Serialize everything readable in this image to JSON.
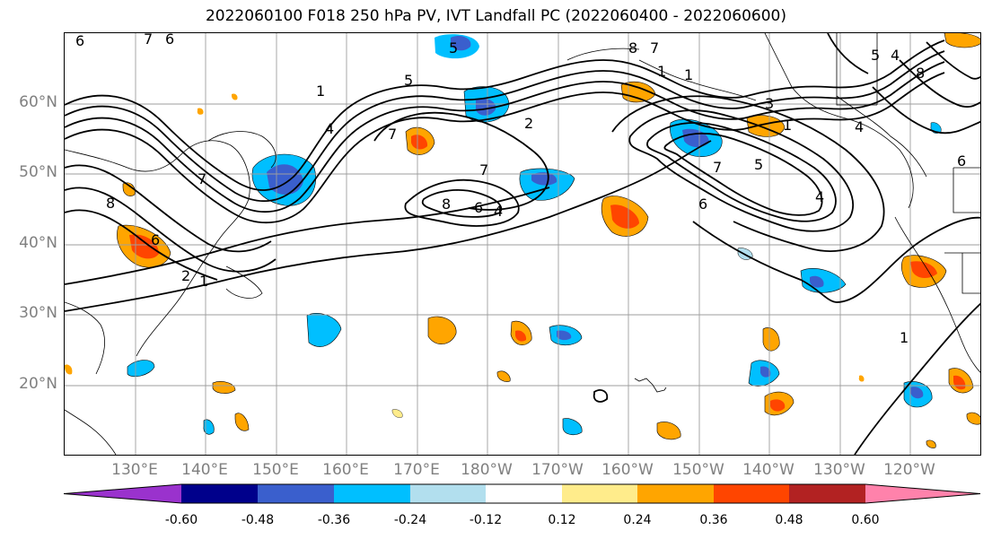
{
  "title": "2022060100 F018 250 hPa PV, IVT Landfall PC (2022060400 - 2022060600)",
  "lat_labels": [
    "60°N",
    "50°N",
    "40°N",
    "30°N",
    "20°N"
  ],
  "lon_labels": [
    "130°E",
    "140°E",
    "150°E",
    "160°E",
    "170°E",
    "180°W",
    "170°W",
    "160°W",
    "150°W",
    "140°W",
    "130°W",
    "120°W"
  ],
  "colorbar": {
    "ticks": [
      "-0.60",
      "-0.48",
      "-0.36",
      "-0.24",
      "-0.12",
      "0.12",
      "0.24",
      "0.36",
      "0.48",
      "0.60"
    ],
    "colors": [
      "#9a32cd",
      "#00008b",
      "#3a5fcd",
      "#00bfff",
      "#b2dfee",
      "#ffffff",
      "#ffec8b",
      "#ffa500",
      "#ff4500",
      "#b22222",
      "#ff82ab"
    ]
  },
  "contour_labels": [
    "6",
    "7",
    "6",
    "8",
    "7",
    "1",
    "5",
    "5",
    "8",
    "7",
    "1",
    "1",
    "2",
    "7",
    "8",
    "6",
    "4",
    "7",
    "6",
    "5",
    "1",
    "4",
    "3",
    "4",
    "5",
    "4",
    "8",
    "7",
    "6",
    "2",
    "1",
    "1",
    "4",
    "6"
  ]
}
